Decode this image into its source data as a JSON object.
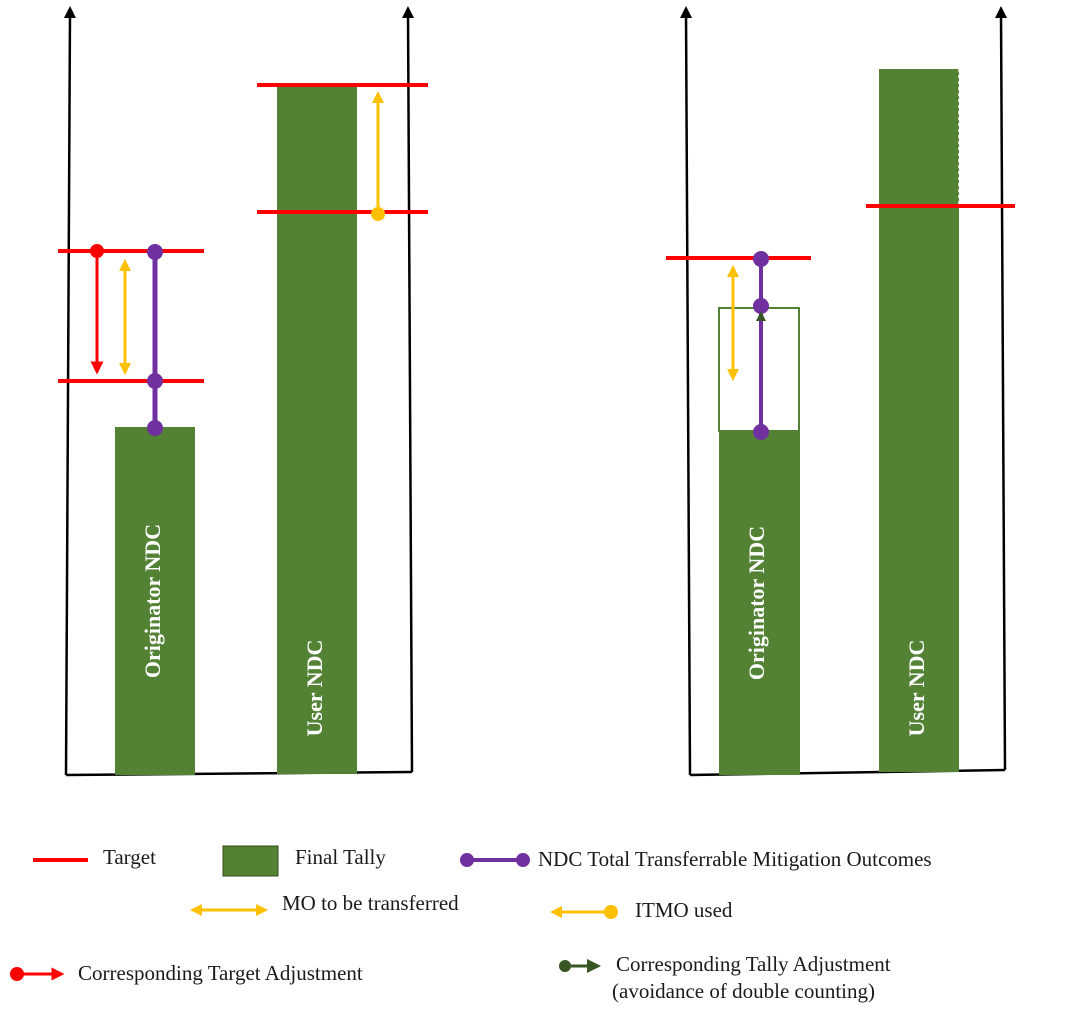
{
  "colors": {
    "bar_green": "#548235",
    "target_red": "#ff0000",
    "mo_yellow": "#ffc000",
    "ndc_purple": "#7030a0",
    "tally_adjust_green": "#375623",
    "axis": "#000000"
  },
  "panels": [
    {
      "bars": [
        {
          "label": "Originator NDC"
        },
        {
          "label": "User NDC"
        }
      ]
    },
    {
      "bars": [
        {
          "label": "Originator NDC"
        },
        {
          "label": "User NDC"
        }
      ]
    }
  ],
  "legend": {
    "target": "Target",
    "final_tally": "Final Tally",
    "ndc_total": "NDC Total Transferrable Mitigation Outcomes",
    "mo_transferred": "MO to be transferred",
    "itmo_used": "ITMO used",
    "target_adjustment": "Corresponding Target Adjustment",
    "tally_adjustment_line1": "Corresponding Tally Adjustment",
    "tally_adjustment_line2": "(avoidance of double counting)"
  }
}
